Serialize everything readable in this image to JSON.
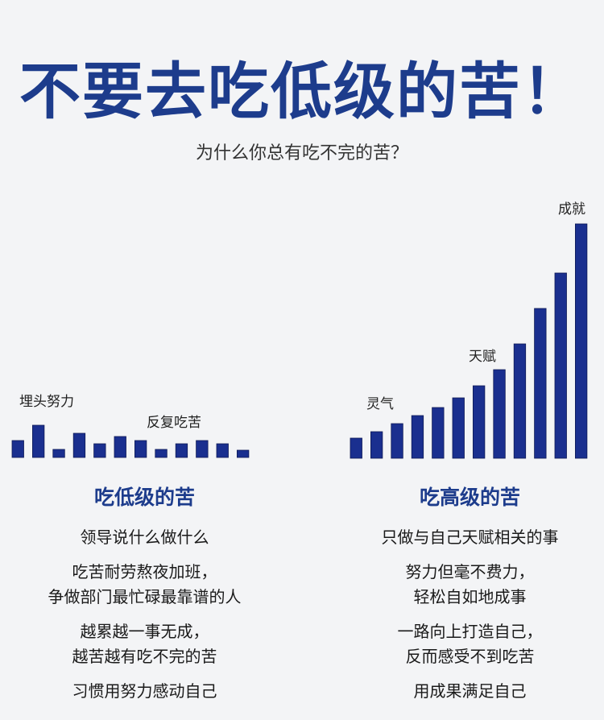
{
  "title": "不要去吃低级的苦！",
  "subtitle": "为什么你总有吃不完的苦？",
  "colors": {
    "bar": "#1a2f8f",
    "title": "#1d3c8c"
  },
  "chart_data": [
    {
      "type": "bar",
      "title": "",
      "values": [
        21,
        40,
        10,
        30,
        17,
        26,
        21,
        10,
        17,
        21,
        17,
        9
      ],
      "annotations": [
        "埋头努力",
        "反复吃苦"
      ]
    },
    {
      "type": "bar",
      "title": "",
      "values": [
        25,
        33,
        43,
        53,
        63,
        75,
        90,
        110,
        142,
        186,
        230,
        291
      ],
      "annotations": [
        "灵气",
        "天赋",
        "成就"
      ]
    }
  ],
  "left": {
    "heading": "吃低级的苦",
    "lines": [
      "领导说什么做什么",
      "吃苦耐劳熬夜加班，",
      "争做部门最忙碌最靠谱的人",
      "越累越一事无成，",
      "越苦越有吃不完的苦",
      "习惯用努力感动自己"
    ]
  },
  "right": {
    "heading": "吃高级的苦",
    "lines": [
      "只做与自己天赋相关的事",
      "努力但毫不费力，",
      "轻松自如地成事",
      "一路向上打造自己，",
      "反而感受不到吃苦",
      "用成果满足自己"
    ]
  }
}
